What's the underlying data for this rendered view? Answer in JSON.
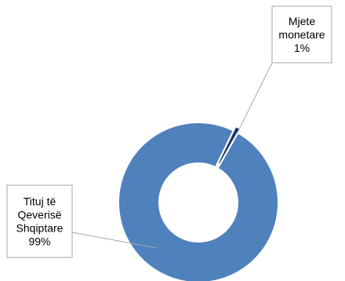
{
  "chart_data": {
    "type": "pie",
    "title": "",
    "categories": [
      "Mjete monetare",
      "Tituj të Qeverisë Shqiptare"
    ],
    "series": [
      {
        "values": [
          1,
          99
        ]
      }
    ],
    "data_labels": [
      {
        "lines": [
          "Mjete",
          "monetare",
          "1%"
        ]
      },
      {
        "lines": [
          "Tituj të",
          "Qeverisë",
          "Shqiptare",
          "99%"
        ]
      }
    ],
    "colors": [
      "#1f3864",
      "#4f81bd"
    ],
    "legend": "none"
  }
}
